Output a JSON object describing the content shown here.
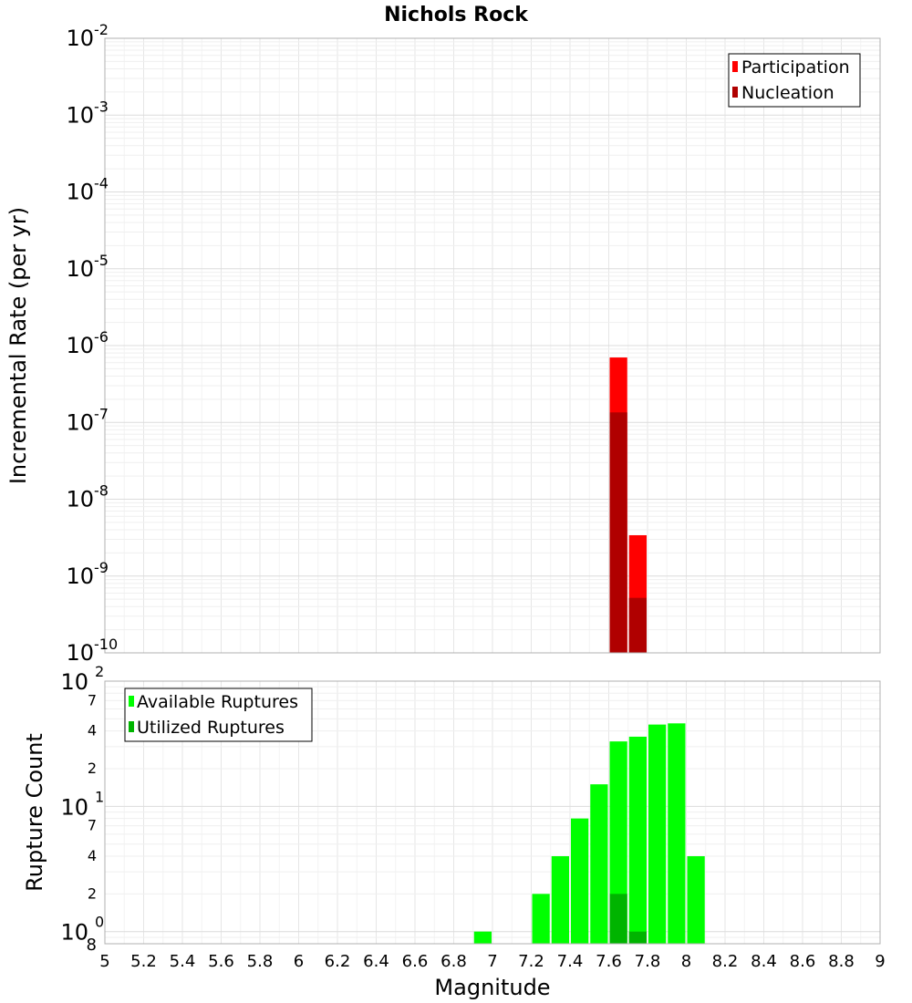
{
  "chart_data": [
    {
      "type": "bar",
      "title": "Nichols Rock",
      "xlabel": "",
      "ylabel": "Incremental Rate (per yr)",
      "yscale": "log",
      "ylim": [
        1e-10,
        0.01
      ],
      "xlim": [
        5,
        9
      ],
      "bin_width": 0.1,
      "grid": true,
      "legend_position": "top-right",
      "y_ticks": [
        {
          "base": "10",
          "exp": "-10"
        },
        {
          "base": "10",
          "exp": "-9"
        },
        {
          "base": "10",
          "exp": "-8"
        },
        {
          "base": "10",
          "exp": "-7"
        },
        {
          "base": "10",
          "exp": "-6"
        },
        {
          "base": "10",
          "exp": "-5"
        },
        {
          "base": "10",
          "exp": "-4"
        },
        {
          "base": "10",
          "exp": "-3"
        },
        {
          "base": "10",
          "exp": "-2"
        }
      ],
      "series": [
        {
          "name": "Participation",
          "color": "#ff0000",
          "points": [
            {
              "x": 7.65,
              "y": 7e-07
            },
            {
              "x": 7.75,
              "y": 3.4e-09
            }
          ]
        },
        {
          "name": "Nucleation",
          "color": "#b00000",
          "points": [
            {
              "x": 7.65,
              "y": 1.35e-07
            },
            {
              "x": 7.75,
              "y": 5.2e-10
            }
          ]
        }
      ]
    },
    {
      "type": "bar",
      "title": "",
      "xlabel": "Magnitude",
      "ylabel": "Rupture Count",
      "yscale": "log",
      "ylim": [
        0.8,
        100
      ],
      "xlim": [
        5,
        9
      ],
      "bin_width": 0.1,
      "grid": true,
      "legend_position": "top-left",
      "x_ticks": [
        "5",
        "5.2",
        "5.4",
        "5.6",
        "5.8",
        "6",
        "6.2",
        "6.4",
        "6.6",
        "6.8",
        "7",
        "7.2",
        "7.4",
        "7.6",
        "7.8",
        "8",
        "8.2",
        "8.4",
        "8.6",
        "8.8",
        "9"
      ],
      "y_major_ticks": [
        {
          "value": 1,
          "base": "10",
          "exp": "0"
        },
        {
          "value": 10,
          "base": "10",
          "exp": "1"
        },
        {
          "value": 100,
          "base": "10",
          "exp": "2"
        }
      ],
      "y_minor_ticks": [
        {
          "value": 0.8,
          "label": "8"
        },
        {
          "value": 2,
          "label": "2"
        },
        {
          "value": 4,
          "label": "4"
        },
        {
          "value": 7,
          "label": "7"
        },
        {
          "value": 20,
          "label": "2"
        },
        {
          "value": 40,
          "label": "4"
        },
        {
          "value": 70,
          "label": "7"
        }
      ],
      "series": [
        {
          "name": "Available Ruptures",
          "color": "#00ff00",
          "points": [
            {
              "x": 6.95,
              "y": 1
            },
            {
              "x": 7.25,
              "y": 2
            },
            {
              "x": 7.35,
              "y": 4
            },
            {
              "x": 7.45,
              "y": 8
            },
            {
              "x": 7.55,
              "y": 15
            },
            {
              "x": 7.65,
              "y": 33
            },
            {
              "x": 7.75,
              "y": 36
            },
            {
              "x": 7.85,
              "y": 45
            },
            {
              "x": 7.95,
              "y": 46
            },
            {
              "x": 8.05,
              "y": 4
            }
          ]
        },
        {
          "name": "Utilized Ruptures",
          "color": "#00b400",
          "points": [
            {
              "x": 7.65,
              "y": 2
            },
            {
              "x": 7.75,
              "y": 1
            }
          ]
        }
      ]
    }
  ]
}
